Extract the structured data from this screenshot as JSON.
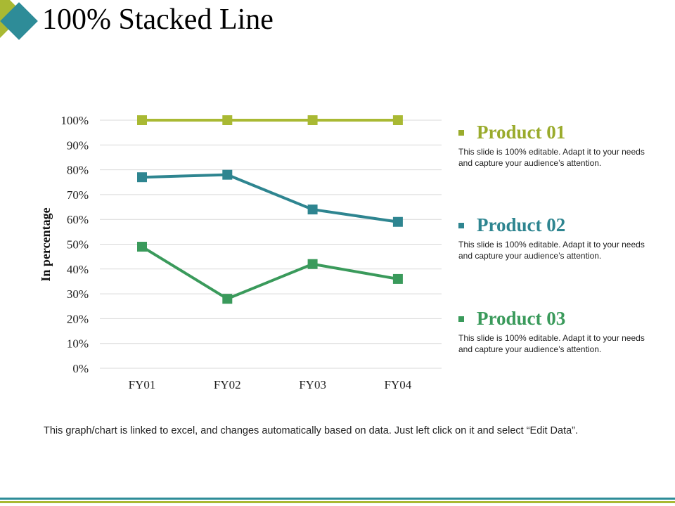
{
  "slide": {
    "title": "100% Stacked Line",
    "footnote": "This graph/chart is linked to excel, and changes automatically based on data. Just left click on it and select “Edit Data”."
  },
  "legend": [
    {
      "name": "Product 01",
      "color": "#9aab2c",
      "text": "This slide is 100% editable. Adapt it to your needs and capture your audience’s attention."
    },
    {
      "name": "Product 02",
      "color": "#2e8590",
      "text": "This slide is 100% editable. Adapt it to your needs and capture your audience’s attention."
    },
    {
      "name": "Product 03",
      "color": "#3a9a5b",
      "text": "This slide is 100% editable. Adapt it to your needs and capture your audience’s attention."
    }
  ],
  "chart_data": {
    "type": "line",
    "title": "",
    "xlabel": "",
    "ylabel": "In percentage",
    "categories": [
      "FY01",
      "FY02",
      "FY03",
      "FY04"
    ],
    "ylim": [
      0,
      100
    ],
    "yticks": [
      "0%",
      "10%",
      "20%",
      "30%",
      "40%",
      "50%",
      "60%",
      "70%",
      "80%",
      "90%",
      "100%"
    ],
    "grid": true,
    "series": [
      {
        "name": "Product 01",
        "color": "#a9b933",
        "values": [
          100,
          100,
          100,
          100
        ]
      },
      {
        "name": "Product 02",
        "color": "#2e8590",
        "values": [
          77,
          78,
          64,
          59
        ]
      },
      {
        "name": "Product 03",
        "color": "#3a9a5b",
        "values": [
          49,
          28,
          42,
          36
        ]
      }
    ]
  }
}
